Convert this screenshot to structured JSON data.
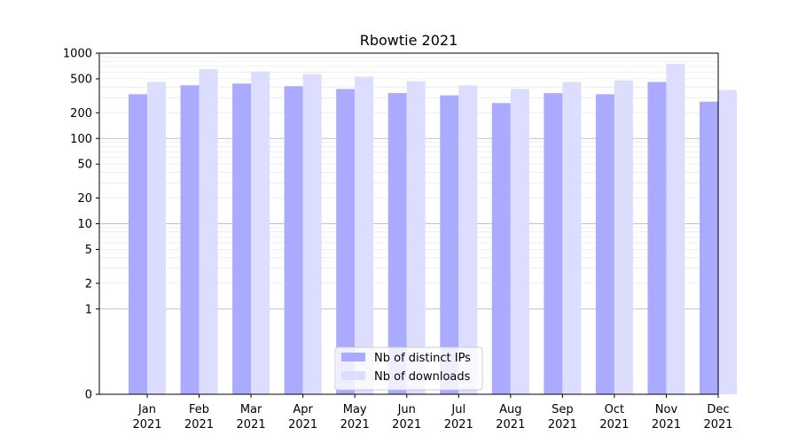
{
  "chart_data": {
    "type": "bar",
    "title": "Rbowtie 2021",
    "xlabel": "",
    "ylabel": "",
    "yscale": "log",
    "ylim": [
      0,
      1000
    ],
    "yticks": [
      0,
      1,
      2,
      5,
      10,
      20,
      50,
      100,
      200,
      500,
      1000
    ],
    "ytick_labels": [
      "0",
      "1",
      "2",
      "5",
      "10",
      "20",
      "50",
      "100",
      "200",
      "500",
      "1000"
    ],
    "grid": true,
    "legend_position": "bottom-center",
    "categories": [
      "Jan 2021",
      "Feb 2021",
      "Mar 2021",
      "Apr 2021",
      "May 2021",
      "Jun 2021",
      "Jul 2021",
      "Aug 2021",
      "Sep 2021",
      "Oct 2021",
      "Nov 2021",
      "Dec 2021"
    ],
    "category_lines": [
      [
        "Jan",
        "2021"
      ],
      [
        "Feb",
        "2021"
      ],
      [
        "Mar",
        "2021"
      ],
      [
        "Apr",
        "2021"
      ],
      [
        "May",
        "2021"
      ],
      [
        "Jun",
        "2021"
      ],
      [
        "Jul",
        "2021"
      ],
      [
        "Aug",
        "2021"
      ],
      [
        "Sep",
        "2021"
      ],
      [
        "Oct",
        "2021"
      ],
      [
        "Nov",
        "2021"
      ],
      [
        "Dec",
        "2021"
      ]
    ],
    "series": [
      {
        "name": "Nb of distinct IPs",
        "color": "#aaaaff",
        "values": [
          330,
          420,
          440,
          410,
          380,
          340,
          320,
          260,
          340,
          330,
          460,
          270
        ]
      },
      {
        "name": "Nb of downloads",
        "color": "#ddddff",
        "values": [
          460,
          650,
          610,
          570,
          530,
          470,
          420,
          380,
          460,
          480,
          750,
          370
        ]
      }
    ]
  }
}
